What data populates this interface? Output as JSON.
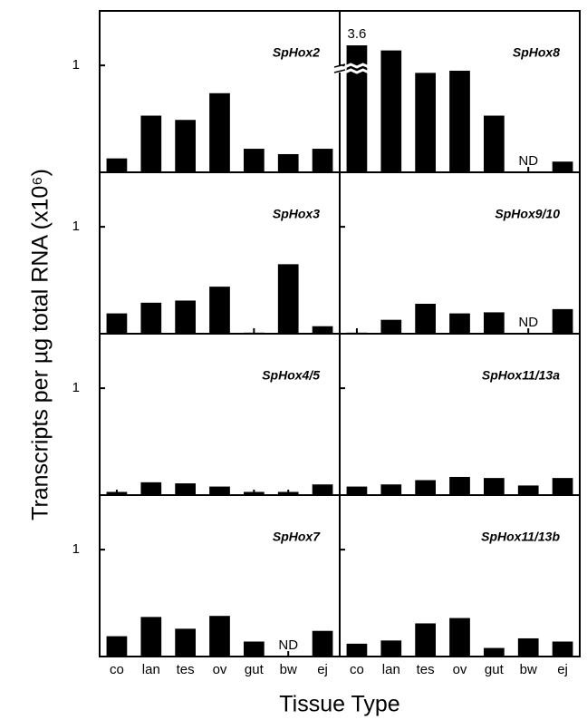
{
  "ylabel": "Transcripts per µg total RNA (x10⁶)",
  "xlabel": "Tissue Type",
  "categories": [
    "co",
    "lan",
    "tes",
    "ov",
    "gut",
    "bw",
    "ej"
  ],
  "chart_data": [
    {
      "type": "bar",
      "title": "SpHox2",
      "values": [
        0.13,
        0.53,
        0.49,
        0.74,
        0.22,
        0.17,
        0.22
      ],
      "ylim": [
        0,
        1.51
      ],
      "yticks": [
        1
      ],
      "color": "#000000"
    },
    {
      "type": "bar",
      "title": "SpHox8",
      "values": [
        3.6,
        1.14,
        0.93,
        0.95,
        0.53,
        null,
        0.1
      ],
      "value_labels": [
        "3.6",
        null,
        null,
        null,
        null,
        "ND",
        null
      ],
      "ylim": [
        0,
        1.51
      ],
      "yticks": [
        1
      ],
      "color": "#000000"
    },
    {
      "type": "bar",
      "title": "SpHox3",
      "values": [
        0.19,
        0.29,
        0.31,
        0.44,
        0.01,
        0.65,
        0.07
      ],
      "ylim": [
        0,
        1.51
      ],
      "yticks": [
        1
      ],
      "color": "#000000"
    },
    {
      "type": "bar",
      "title": "SpHox9/10",
      "values": [
        0.01,
        0.13,
        0.28,
        0.19,
        0.2,
        null,
        0.23
      ],
      "value_labels": [
        null,
        null,
        null,
        null,
        null,
        "ND",
        null
      ],
      "ylim": [
        0,
        1.51
      ],
      "yticks": [
        1
      ],
      "color": "#000000"
    },
    {
      "type": "bar",
      "title": "SpHox4/5",
      "values": [
        0.03,
        0.12,
        0.11,
        0.08,
        0.03,
        0.03,
        0.1
      ],
      "ylim": [
        0,
        1.51
      ],
      "yticks": [
        1
      ],
      "color": "#000000"
    },
    {
      "type": "bar",
      "title": "SpHox11/13a",
      "values": [
        0.08,
        0.1,
        0.14,
        0.17,
        0.16,
        0.09,
        0.16
      ],
      "ylim": [
        0,
        1.51
      ],
      "yticks": [
        1
      ],
      "color": "#000000"
    },
    {
      "type": "bar",
      "title": "SpHox7",
      "values": [
        0.19,
        0.37,
        0.26,
        0.38,
        0.14,
        null,
        0.24
      ],
      "value_labels": [
        null,
        null,
        null,
        null,
        null,
        "ND",
        null
      ],
      "ylim": [
        0,
        1.51
      ],
      "yticks": [
        1
      ],
      "color": "#000000"
    },
    {
      "type": "bar",
      "title": "SpHox11/13b",
      "values": [
        0.12,
        0.15,
        0.31,
        0.36,
        0.08,
        0.17,
        0.14
      ],
      "ylim": [
        0,
        1.51
      ],
      "yticks": [
        1
      ],
      "color": "#000000"
    }
  ]
}
